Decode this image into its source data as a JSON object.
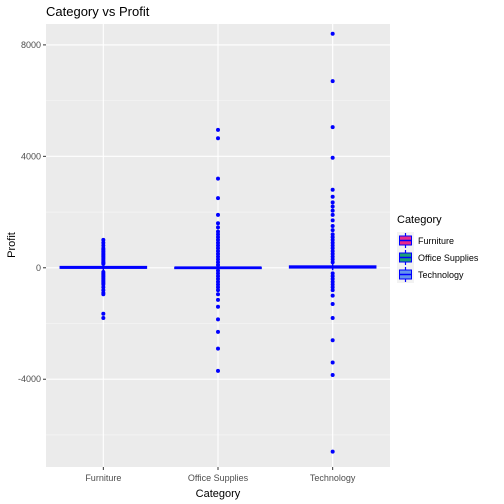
{
  "chart_data": {
    "type": "boxplot",
    "title": "Category vs Profit",
    "xlabel": "Category",
    "ylabel": "Profit",
    "categories": [
      "Furniture",
      "Office Supplies",
      "Technology"
    ],
    "ylim": [
      -7150,
      8750
    ],
    "yticks": [
      -4000,
      0,
      4000,
      8000
    ],
    "grid": true,
    "legend": {
      "title": "Category",
      "position": "right",
      "entries": [
        {
          "label": "Furniture",
          "color": "#E7298A"
        },
        {
          "label": "Office Supplies",
          "color": "#1B9E77"
        },
        {
          "label": "Technology",
          "color": "#6495ED"
        }
      ]
    },
    "outline_color": "#0000FF",
    "series": [
      {
        "name": "Furniture",
        "box": {
          "q1": -10,
          "median": 10,
          "q3": 40,
          "whisker_low": -100,
          "whisker_high": 110
        },
        "outliers": [
          1000,
          900,
          800,
          700,
          650,
          600,
          550,
          500,
          450,
          400,
          350,
          300,
          250,
          200,
          170,
          140,
          -150,
          -200,
          -250,
          -300,
          -350,
          -400,
          -450,
          -500,
          -550,
          -600,
          -700,
          -800,
          -900,
          -950,
          -1650,
          -1800
        ]
      },
      {
        "name": "Office Supplies",
        "box": {
          "q1": 0,
          "median": 5,
          "q3": 15,
          "whisker_low": -15,
          "whisker_high": 40
        },
        "outliers": [
          4950,
          4650,
          3200,
          2500,
          1900,
          1600,
          1450,
          1300,
          1200,
          1100,
          1000,
          900,
          800,
          700,
          600,
          500,
          400,
          300,
          200,
          100,
          -100,
          -200,
          -300,
          -400,
          -500,
          -600,
          -700,
          -800,
          -950,
          -1150,
          -1400,
          -1850,
          -2300,
          -2900,
          -3700
        ]
      },
      {
        "name": "Technology",
        "box": {
          "q1": 0,
          "median": 20,
          "q3": 60,
          "whisker_low": -90,
          "whisker_high": 150
        },
        "outliers": [
          8400,
          6700,
          5050,
          3950,
          2800,
          2550,
          2350,
          2200,
          2050,
          1900,
          1700,
          1500,
          1350,
          1200,
          1100,
          1000,
          900,
          800,
          700,
          600,
          500,
          400,
          300,
          200,
          -200,
          -300,
          -400,
          -500,
          -600,
          -700,
          -800,
          -1000,
          -1300,
          -1800,
          -2600,
          -3400,
          -3850,
          -6600
        ]
      }
    ]
  }
}
